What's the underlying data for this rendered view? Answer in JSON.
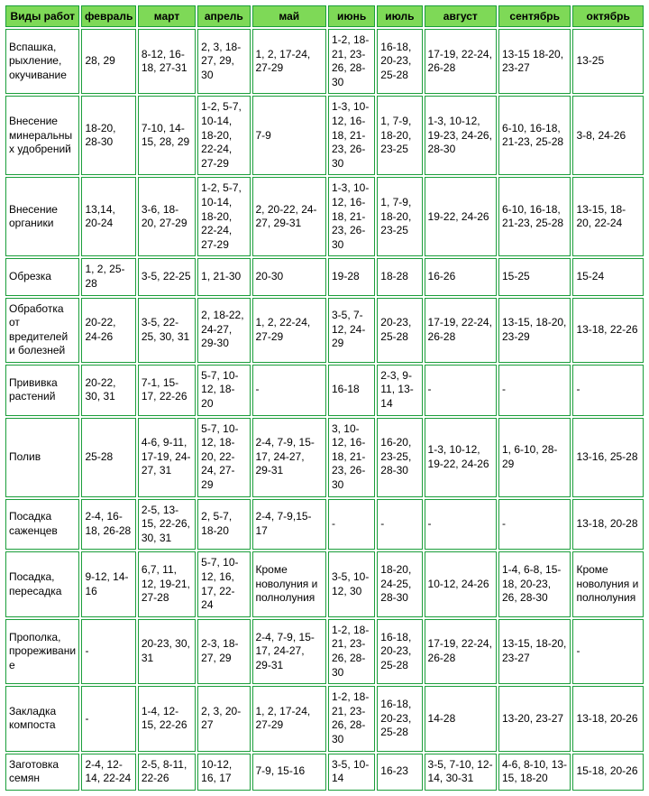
{
  "columns": [
    "Виды работ",
    "февраль",
    "март",
    "апрель",
    "май",
    "июнь",
    "июль",
    "август",
    "сентябрь",
    "октябрь"
  ],
  "rows": [
    [
      "Вспашка, рыхление, окучивание",
      "28, 29",
      "8-12, 16-18, 27-31",
      "2, 3, 18-27, 29, 30",
      "1, 2, 17-24, 27-29",
      "1-2, 18-21, 23-26, 28-30",
      "16-18, 20-23, 25-28",
      "17-19, 22-24, 26-28",
      "13-15 18-20, 23-27",
      "13-25"
    ],
    [
      "Внесение минеральных удобрений",
      "18-20, 28-30",
      "7-10, 14-15, 28, 29",
      "1-2, 5-7, 10-14, 18-20, 22-24, 27-29",
      "7-9",
      "1-3, 10-12, 16-18, 21-23, 26-30",
      "1, 7-9, 18-20, 23-25",
      "1-3, 10-12, 19-23, 24-26, 28-30",
      "6-10, 16-18, 21-23, 25-28",
      "3-8, 24-26"
    ],
    [
      "Внесение органики",
      "13,14, 20-24",
      "3-6, 18-20, 27-29",
      "1-2, 5-7, 10-14, 18-20, 22-24, 27-29",
      "2, 20-22, 24-27, 29-31",
      "1-3, 10-12, 16-18, 21-23, 26-30",
      "1, 7-9, 18-20, 23-25",
      "19-22, 24-26",
      "6-10, 16-18, 21-23, 25-28",
      "13-15, 18-20, 22-24"
    ],
    [
      "Обрезка",
      "1, 2, 25-28",
      "3-5, 22-25",
      "1, 21-30",
      "20-30",
      "19-28",
      "18-28",
      "16-26",
      "15-25",
      "15-24"
    ],
    [
      "Обработка от вредителей и болезней",
      "20-22, 24-26",
      "3-5, 22-25, 30, 31",
      "2, 18-22, 24-27, 29-30",
      "1, 2, 22-24, 27-29",
      "3-5, 7-12, 24-29",
      "20-23, 25-28",
      "17-19, 22-24, 26-28",
      "13-15, 18-20, 23-29",
      "13-18, 22-26"
    ],
    [
      "Прививка растений",
      "20-22, 30, 31",
      "7-1, 15-17, 22-26",
      "5-7, 10-12, 18-20",
      "-",
      "16-18",
      "2-3, 9-11, 13-14",
      "-",
      "-",
      "-"
    ],
    [
      "Полив",
      "25-28",
      "4-6, 9-11, 17-19, 24-27, 31",
      "5-7, 10-12, 18-20, 22-24, 27-29",
      "2-4, 7-9, 15-17, 24-27, 29-31",
      "3, 10-12, 16-18, 21-23, 26-30",
      "16-20, 23-25, 28-30",
      "1-3, 10-12, 19-22, 24-26",
      "1, 6-10, 28-29",
      "13-16, 25-28"
    ],
    [
      "Посадка саженцев",
      "2-4, 16-18, 26-28",
      "2-5, 13-15, 22-26, 30, 31",
      "2, 5-7, 18-20",
      "2-4, 7-9,15-17",
      "-",
      "-",
      "-",
      "-",
      "13-18, 20-28"
    ],
    [
      "Посадка, пересадка",
      "9-12, 14-16",
      "6,7, 11, 12, 19-21, 27-28",
      "5-7, 10-12, 16, 17, 22-24",
      "Кроме новолуния и полнолуния",
      "3-5, 10-12, 30",
      "18-20, 24-25, 28-30",
      "10-12, 24-26",
      "1-4, 6-8, 15-18, 20-23, 26, 28-30",
      "Кроме новолуния и полнолуния"
    ],
    [
      "Прополка, прореживание",
      "-",
      "20-23, 30, 31",
      "2-3, 18-27, 29",
      "2-4, 7-9, 15-17, 24-27, 29-31",
      "1-2, 18-21, 23-26, 28-30",
      "16-18, 20-23, 25-28",
      "17-19, 22-24, 26-28",
      "13-15, 18-20, 23-27",
      "-"
    ],
    [
      "Закладка компоста",
      "-",
      "1-4, 12-15, 22-26",
      "2, 3, 20-27",
      "1, 2, 17-24, 27-29",
      "1-2, 18-21, 23-26, 28-30",
      "16-18, 20-23, 25-28",
      "14-28",
      "13-20, 23-27",
      "13-18, 20-26"
    ],
    [
      "Заготовка семян",
      "2-4, 12-14, 22-24",
      "2-5, 8-11, 22-26",
      "10-12, 16, 17",
      "7-9, 15-16",
      "3-5, 10-14",
      "16-23",
      "3-5, 7-10, 12-14, 30-31",
      "4-6, 8-10, 13-15, 18-20",
      "15-18, 20-26"
    ]
  ]
}
